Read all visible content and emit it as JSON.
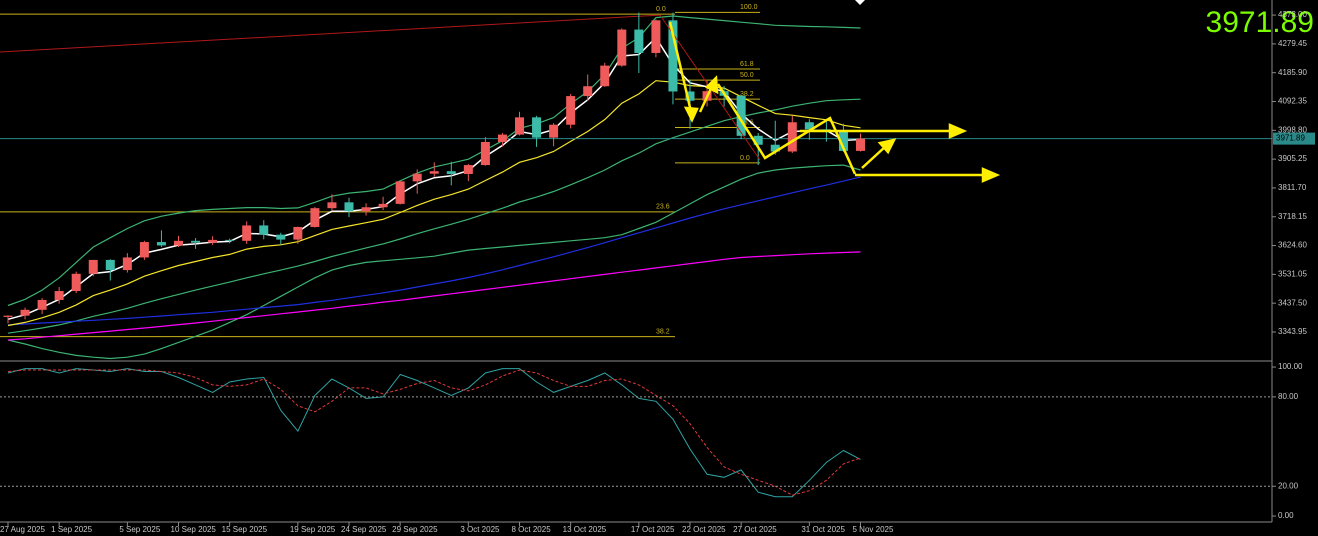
{
  "chart_data": [
    {
      "type": "candlestick",
      "categories": [
        "27 Aug 2025",
        null,
        null,
        "1 Sep 2025",
        null,
        null,
        null,
        "5 Sep 2025",
        null,
        null,
        "10 Sep 2025",
        null,
        null,
        "15 Sep 2025",
        null,
        null,
        null,
        "19 Sep 2025",
        null,
        null,
        "24 Sep 2025",
        null,
        null,
        "29 Sep 2025",
        null,
        null,
        null,
        "3 Oct 2025",
        null,
        null,
        "8 Oct 2025",
        null,
        null,
        "13 Oct 2025",
        null,
        null,
        null,
        "17 Oct 2025",
        null,
        null,
        "22 Oct 2025",
        null,
        null,
        "27 Oct 2025",
        null,
        null,
        null,
        "31 Oct 2025",
        null,
        null,
        "5 Nov 2025"
      ],
      "open": [
        3393,
        3397,
        3416,
        3448,
        3477,
        3533,
        3578,
        3545,
        3586,
        3636,
        3625,
        3640,
        3634,
        3643,
        3640,
        3690,
        3660,
        3644,
        3685,
        3746,
        3765,
        3736,
        3749,
        3760,
        3833,
        3858,
        3866,
        3857,
        3886,
        3961,
        3985,
        4041,
        3975,
        4017,
        4110,
        4142,
        4209,
        4326,
        4250,
        4356,
        4125,
        4095,
        4126,
        4111,
        3981,
        3952,
        3930,
        4025,
        4002,
        4000,
        3932
      ],
      "high": [
        3398,
        3423,
        3454,
        3490,
        3540,
        3578,
        3580,
        3600,
        3640,
        3674,
        3656,
        3649,
        3655,
        3647,
        3703,
        3707,
        3666,
        3686,
        3750,
        3791,
        3780,
        3762,
        3783,
        3834,
        3872,
        3895,
        3897,
        3889,
        3977,
        3990,
        4059,
        4046,
        4022,
        4117,
        4180,
        4218,
        4330,
        4381,
        4359,
        4381,
        4162,
        4160,
        4143,
        4115,
        3990,
        4030,
        4046,
        4035,
        4030,
        4020,
        3988
      ],
      "low": [
        3372,
        3385,
        3402,
        3436,
        3470,
        3525,
        3511,
        3537,
        3578,
        3620,
        3620,
        3614,
        3627,
        3632,
        3630,
        3645,
        3627,
        3630,
        3683,
        3737,
        3717,
        3722,
        3740,
        3758,
        3793,
        3848,
        3820,
        3834,
        3884,
        3946,
        3982,
        3945,
        3947,
        4005,
        4094,
        4140,
        4205,
        4185,
        4236,
        4083,
        4004,
        4076,
        4076,
        3970,
        3886,
        3920,
        3925,
        3968,
        3962,
        3929,
        3930
      ],
      "close": [
        3397,
        3416,
        3448,
        3477,
        3533,
        3578,
        3545,
        3586,
        3636,
        3625,
        3640,
        3634,
        3643,
        3640,
        3690,
        3660,
        3644,
        3685,
        3746,
        3765,
        3736,
        3749,
        3760,
        3833,
        3858,
        3866,
        3857,
        3886,
        3961,
        3985,
        4041,
        3975,
        4017,
        4110,
        4142,
        4209,
        4326,
        4250,
        4356,
        4125,
        4095,
        4126,
        4111,
        3981,
        3952,
        3930,
        4025,
        4002,
        4000,
        3932,
        3971.89
      ],
      "up_color": "#ef5a5a",
      "down_color": "#3dbba9",
      "ylim": [
        3253,
        4422
      ],
      "yticks": [
        {
          "value": 4373,
          "label": "4373.00"
        },
        {
          "value": 4279.45,
          "label": "4279.45"
        },
        {
          "value": 4185.9,
          "label": "4185.90"
        },
        {
          "value": 4092.35,
          "label": "4092.35"
        },
        {
          "value": 3998.8,
          "label": "3998.80"
        },
        {
          "value": 3905.25,
          "label": "3905.25"
        },
        {
          "value": 3811.7,
          "label": "3811.70"
        },
        {
          "value": 3718.15,
          "label": "3718.15"
        },
        {
          "value": 3624.6,
          "label": "3624.60"
        },
        {
          "value": 3531.05,
          "label": "3531.05"
        },
        {
          "value": 3437.5,
          "label": "3437.50"
        },
        {
          "value": 3343.95,
          "label": "3343.95"
        }
      ],
      "last_price_color": "#7cfc00",
      "price_line_color": "#2a8a8a",
      "series": [
        {
          "color": "#3cb371",
          "values": [
            3430,
            3450,
            3480,
            3520,
            3570,
            3620,
            3650,
            3680,
            3705,
            3720,
            3730,
            3738,
            3742,
            3745,
            3748,
            3748,
            3745,
            3747,
            3765,
            3785,
            3795,
            3800,
            3808,
            3835,
            3860,
            3880,
            3892,
            3905,
            3935,
            3965,
            4005,
            4020,
            4040,
            4085,
            4125,
            4180,
            4265,
            4300,
            4365,
            4370,
            4365,
            4360,
            4355,
            4350,
            4345,
            4340,
            4338,
            4336,
            4335,
            4333,
            4331
          ]
        },
        {
          "color": "#3cb371",
          "values": [
            3340,
            3348,
            3357,
            3367,
            3380,
            3395,
            3407,
            3421,
            3437,
            3452,
            3466,
            3480,
            3493,
            3506,
            3520,
            3533,
            3545,
            3558,
            3573,
            3589,
            3603,
            3617,
            3630,
            3646,
            3663,
            3679,
            3694,
            3710,
            3728,
            3746,
            3766,
            3782,
            3800,
            3822,
            3845,
            3870,
            3900,
            3925,
            3955,
            3975,
            3993,
            4012,
            4030,
            4043,
            4055,
            4065,
            4077,
            4087,
            4095,
            4098,
            4100
          ]
        },
        {
          "color": "#3cb371",
          "values": [
            3318,
            3305,
            3290,
            3278,
            3268,
            3262,
            3258,
            3262,
            3272,
            3290,
            3310,
            3330,
            3350,
            3375,
            3400,
            3430,
            3460,
            3490,
            3520,
            3545,
            3560,
            3570,
            3575,
            3580,
            3585,
            3590,
            3600,
            3610,
            3615,
            3620,
            3625,
            3630,
            3635,
            3640,
            3645,
            3650,
            3660,
            3680,
            3700,
            3730,
            3760,
            3790,
            3815,
            3840,
            3860,
            3870,
            3876,
            3880,
            3884,
            3886,
            3870
          ]
        },
        {
          "color": "#ff00ff",
          "values": [
            3318,
            3322,
            3327,
            3332,
            3337,
            3342,
            3347,
            3352,
            3357,
            3362,
            3368,
            3373,
            3379,
            3385,
            3391,
            3397,
            3403,
            3409,
            3415,
            3421,
            3428,
            3434,
            3441,
            3447,
            3454,
            3461,
            3468,
            3475,
            3482,
            3489,
            3496,
            3503,
            3510,
            3517,
            3524,
            3531,
            3538,
            3545,
            3552,
            3559,
            3566,
            3573,
            3580,
            3586,
            3589,
            3592,
            3595,
            3598,
            3600,
            3602,
            3604
          ]
        },
        {
          "color": "#1f2fe0",
          "values": [
            3367,
            3370,
            3373,
            3376,
            3379,
            3382,
            3385,
            3388,
            3392,
            3396,
            3400,
            3404,
            3408,
            3413,
            3418,
            3423,
            3428,
            3433,
            3440,
            3447,
            3455,
            3463,
            3471,
            3480,
            3490,
            3500,
            3510,
            3521,
            3533,
            3546,
            3560,
            3574,
            3588,
            3603,
            3618,
            3634,
            3650,
            3666,
            3682,
            3698,
            3714,
            3729,
            3744,
            3757,
            3770,
            3783,
            3796,
            3809,
            3821,
            3834,
            3847
          ]
        },
        {
          "color": "#f5e52a",
          "values": [
            3365,
            3375,
            3390,
            3408,
            3432,
            3462,
            3480,
            3500,
            3525,
            3543,
            3560,
            3573,
            3586,
            3596,
            3613,
            3622,
            3627,
            3637,
            3657,
            3677,
            3688,
            3699,
            3710,
            3732,
            3755,
            3775,
            3790,
            3808,
            3836,
            3863,
            3895,
            3910,
            3930,
            3963,
            3995,
            4034,
            4087,
            4117,
            4160,
            4155,
            4144,
            4141,
            4136,
            4108,
            4080,
            4053,
            4048,
            4040,
            4033,
            4015,
            4007
          ]
        },
        {
          "color": "#ffffff",
          "values": [
            3385,
            3400,
            3424,
            3450,
            3491,
            3534,
            3540,
            3563,
            3600,
            3612,
            3626,
            3630,
            3636,
            3638,
            3664,
            3662,
            3653,
            3669,
            3707,
            3736,
            3736,
            3742,
            3751,
            3792,
            3825,
            3845,
            3851,
            3868,
            3914,
            3950,
            3995,
            3985,
            4001,
            4055,
            4098,
            4153,
            4240,
            4245,
            4300,
            4212,
            4153,
            4140,
            4125,
            4053,
            4003,
            3966,
            3995,
            3998,
            3999,
            3966,
            3969
          ]
        }
      ],
      "trendline": {
        "color": "#b01818",
        "values": [
          4253,
          4373
        ]
      },
      "fib_color": "#c9b31a",
      "fibs": [
        {
          "levels": [
            {
              "label": "0.0",
              "value": 4376
            },
            {
              "label": "23.6",
              "value": 3734
            },
            {
              "label": "38.2",
              "value": 3329
            }
          ]
        },
        {
          "levels": [
            {
              "label": "100.0",
              "value": 4382
            },
            {
              "label": "61.8",
              "value": 4198
            },
            {
              "label": "50.0",
              "value": 4162
            },
            {
              "label": "38.2",
              "value": 4100
            },
            {
              "label": "23.6",
              "value": 4008
            },
            {
              "label": "0.0",
              "value": 3893
            }
          ]
        }
      ]
    },
    {
      "type": "line",
      "ylim": [
        -4,
        103.4
      ],
      "yticks": [
        {
          "value": 100,
          "label": "100.00"
        },
        {
          "value": 80,
          "label": "80.00"
        },
        {
          "value": 20,
          "label": "20.00"
        },
        {
          "value": 0,
          "label": "0.00"
        }
      ],
      "series": [
        {
          "color": "#2fa3a3",
          "dashed": false,
          "values": [
            96,
            99,
            99,
            96,
            99,
            98,
            97,
            99,
            97,
            97,
            93,
            88,
            83,
            90,
            92,
            93,
            71,
            57,
            81,
            92,
            86,
            79,
            80,
            95,
            91,
            86,
            81,
            86,
            96,
            99,
            99,
            90,
            83,
            87,
            91,
            96,
            88,
            79,
            77,
            65,
            45,
            28,
            26,
            31,
            16,
            13,
            13,
            24,
            36,
            44,
            38
          ]
        },
        {
          "color": "#e03a3a",
          "dashed": true,
          "values": [
            97,
            98,
            98,
            98,
            98,
            98,
            98,
            98,
            98,
            97,
            96,
            93,
            88,
            87,
            88,
            92,
            85,
            74,
            70,
            77,
            86,
            86,
            82,
            85,
            89,
            91,
            86,
            84,
            88,
            94,
            98,
            96,
            91,
            87,
            87,
            91,
            92,
            88,
            81,
            74,
            62,
            46,
            33,
            28,
            24,
            20,
            14,
            17,
            24,
            35,
            39
          ]
        }
      ]
    }
  ]
}
